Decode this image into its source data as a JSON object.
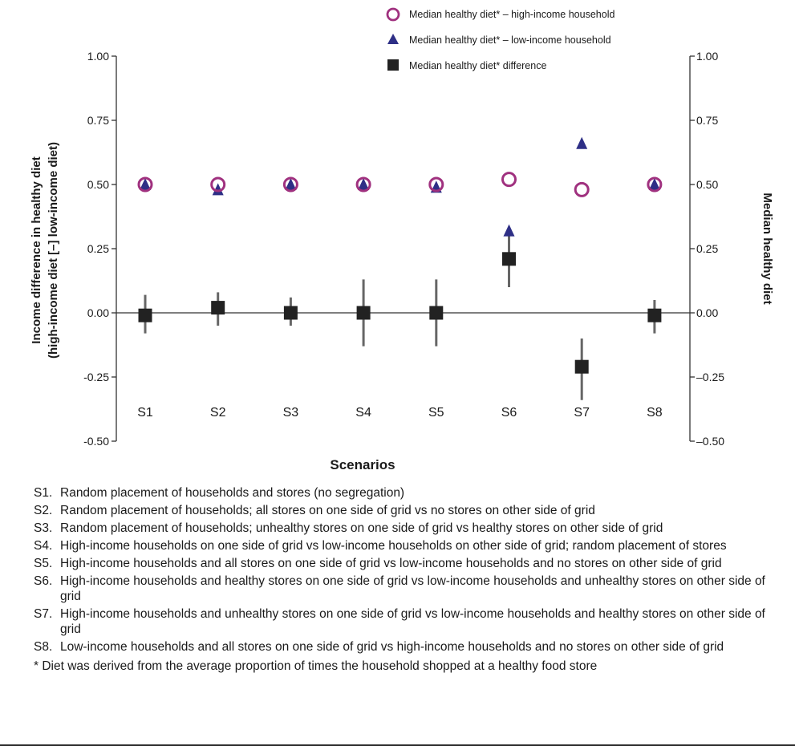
{
  "chart_data": {
    "type": "scatter",
    "categories": [
      "S1",
      "S2",
      "S3",
      "S4",
      "S5",
      "S6",
      "S7",
      "S8"
    ],
    "xlabel": "Scenarios",
    "ylabel_left_line1": "Income difference in healthy diet",
    "ylabel_left_line2": "(high-income diet [–] low-income diet)",
    "ylabel_right": "Median healthy diet",
    "ylim": [
      -0.5,
      1.0
    ],
    "yticks": [
      1.0,
      0.75,
      0.5,
      0.25,
      0.0,
      -0.25,
      -0.5
    ],
    "ytick_labels": [
      "1.00",
      "0.75",
      "0.50",
      "0.25",
      "0.00",
      "-0.25",
      "-0.50"
    ],
    "ytick_labels_right": [
      "1.00",
      "0.75",
      "0.50",
      "0.25",
      "0.00",
      "–0.25",
      "–0.50"
    ],
    "legend_position": "top-right",
    "series": [
      {
        "name": "Median healthy diet* – high-income household",
        "marker": "circle-open",
        "color": "#a0317f",
        "values": [
          0.5,
          0.5,
          0.5,
          0.5,
          0.5,
          0.52,
          0.48,
          0.5
        ]
      },
      {
        "name": "Median healthy diet* – low-income household",
        "marker": "triangle",
        "color": "#2e2f86",
        "values": [
          0.5,
          0.48,
          0.5,
          0.5,
          0.49,
          0.32,
          0.66,
          0.5
        ]
      },
      {
        "name": "Median healthy diet* difference",
        "marker": "square",
        "color": "#222222",
        "values": [
          -0.01,
          0.02,
          0.0,
          0.0,
          0.0,
          0.21,
          -0.21,
          -0.01
        ],
        "error_low": [
          -0.08,
          -0.05,
          -0.05,
          -0.13,
          -0.13,
          0.1,
          -0.34,
          -0.08
        ],
        "error_high": [
          0.07,
          0.08,
          0.06,
          0.13,
          0.13,
          0.33,
          -0.1,
          0.05
        ]
      }
    ]
  },
  "notes": [
    {
      "code": "S1.",
      "text": "Random placement of households and stores (no segregation)"
    },
    {
      "code": "S2.",
      "text": "Random placement of households; all stores on one side of grid vs no stores on other side of grid"
    },
    {
      "code": "S3.",
      "text": "Random placement of households; unhealthy stores on one side of grid vs healthy stores on other side of grid"
    },
    {
      "code": "S4.",
      "text": "High-income households on one side of grid vs low-income households on other side of grid; random placement of stores"
    },
    {
      "code": "S5.",
      "text": "High-income households and all stores on one side of grid vs low-income households and no stores on other side of grid"
    },
    {
      "code": "S6.",
      "text": "High-income households and healthy stores on one side of grid vs low-income households and unhealthy stores on other side of grid"
    },
    {
      "code": "S7.",
      "text": "High-income households and unhealthy stores on one side of grid vs low-income households and healthy stores on other side of grid"
    },
    {
      "code": "S8.",
      "text": "Low-income households and all stores on one side of grid vs high-income households and no stores on other side of grid"
    }
  ],
  "footnote": "* Diet was derived from the average proportion of times the household shopped at a healthy food store"
}
